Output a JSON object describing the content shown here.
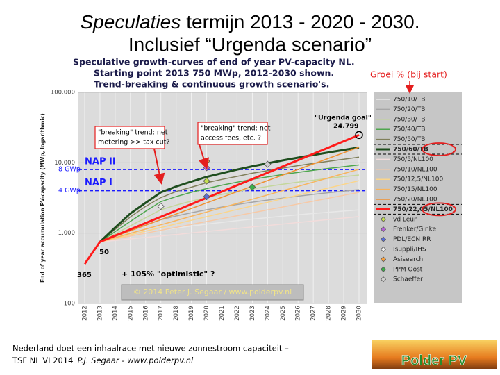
{
  "slide": {
    "title_italic": "Speculaties",
    "title_rest": "termijn 2013 - 2020 - 2030.",
    "title_line2": "Inclusief “Urgenda scenario”",
    "footer_line1": "Nederland doet een inhaalrace met nieuwe zonnestroom capaciteit –",
    "footer_event": "TSF NL VI 2014",
    "footer_author": "P.J. Segaar  - www.polderpv.nl",
    "logo": "Polder PV",
    "growth_note": "Groei % (bij start)"
  },
  "chart_data": {
    "type": "line",
    "title": "Speculative growth-curves of end of year PV-capacity NL.",
    "subtitle": [
      "Starting point 2013 750 MWp, 2012-2030 shown.",
      "Trend-breaking & continuous growth scenario's."
    ],
    "y_label": "End of year accumulation PV-capacity (MWp, logarithmic)",
    "log_scale": true,
    "grid": true,
    "x": [
      2012,
      2013,
      2014,
      2015,
      2016,
      2017,
      2018,
      2019,
      2020,
      2021,
      2022,
      2023,
      2024,
      2025,
      2026,
      2027,
      2028,
      2029,
      2030
    ],
    "xlim": [
      2012,
      2030
    ],
    "xticks": [
      2012,
      2013,
      2014,
      2015,
      2016,
      2017,
      2018,
      2019,
      2020,
      2021,
      2022,
      2023,
      2024,
      2025,
      2026,
      2027,
      2028,
      2029,
      2030
    ],
    "ylim": [
      100,
      100000
    ],
    "yticks": [
      100,
      {
        "value": 1000,
        "label": "1.000"
      },
      {
        "value": 10000,
        "label": "10.000"
      },
      {
        "value": 100000,
        "label": "100.000"
      }
    ],
    "series": [
      {
        "name": "750/10/TB",
        "color": "#e8e8e8",
        "width": 1.5,
        "values": [
          null,
          750,
          825,
          908,
          998,
          1098,
          1180,
          1260,
          1340,
          1420,
          1500,
          1580,
          1660,
          1740,
          1820,
          1900,
          1980,
          2060,
          2140
        ]
      },
      {
        "name": "750/20/TB",
        "color": "#a6a6a6",
        "width": 1.5,
        "values": [
          null,
          750,
          900,
          1080,
          1300,
          1550,
          1750,
          1950,
          2150,
          2350,
          2550,
          2750,
          2950,
          3150,
          3350,
          3550,
          3750,
          3950,
          4150
        ]
      },
      {
        "name": "750/30/TB",
        "color": "#c4d79b",
        "width": 1.5,
        "values": [
          null,
          750,
          975,
          1270,
          1650,
          2150,
          2500,
          2850,
          3200,
          3550,
          3900,
          4250,
          4600,
          4950,
          5300,
          5650,
          6000,
          6350,
          6700
        ]
      },
      {
        "name": "750/40/TB",
        "color": "#4ea64e",
        "width": 1.5,
        "values": [
          null,
          750,
          1050,
          1470,
          2050,
          2800,
          3300,
          3800,
          4300,
          4800,
          5300,
          5800,
          6300,
          6800,
          7300,
          7800,
          8300,
          8800,
          9300
        ]
      },
      {
        "name": "750/50/TB",
        "color": "#7f7f5a",
        "width": 1.5,
        "values": [
          null,
          750,
          1130,
          1700,
          2400,
          3200,
          3900,
          4500,
          5200,
          5800,
          6400,
          7100,
          7700,
          8400,
          9100,
          9800,
          10500,
          11200,
          12000
        ]
      },
      {
        "name": "750/60/TB",
        "color": "#1e4d1e",
        "width": 3,
        "values": [
          null,
          750,
          1200,
          1900,
          2700,
          3800,
          4600,
          5400,
          6300,
          7100,
          8000,
          8900,
          9800,
          10800,
          11800,
          12900,
          14000,
          15200,
          16500
        ]
      },
      {
        "name": "750/5/NL100",
        "color": "#f2dcdb",
        "width": 1.5,
        "values": [
          null,
          750,
          788,
          827,
          868,
          912,
          957,
          1005,
          1055,
          1108,
          1163,
          1222,
          1283,
          1347,
          1414,
          1485,
          1559,
          1637,
          1719
        ]
      },
      {
        "name": "750/10/NL100",
        "color": "#f7c9a6",
        "width": 1.5,
        "values": [
          null,
          750,
          825,
          908,
          998,
          1098,
          1208,
          1329,
          1461,
          1608,
          1768,
          1945,
          2140,
          2354,
          2589,
          2848,
          3133,
          3446,
          3791
        ]
      },
      {
        "name": "750/12,5/NL100",
        "color": "#fbd58a",
        "width": 1.5,
        "values": [
          null,
          750,
          844,
          949,
          1068,
          1201,
          1352,
          1521,
          1711,
          1925,
          2165,
          2436,
          2740,
          3083,
          3468,
          3902,
          4389,
          4938,
          5555
        ]
      },
      {
        "name": "750/15/NL100",
        "color": "#f8b45c",
        "width": 1.5,
        "values": [
          null,
          750,
          863,
          992,
          1141,
          1312,
          1509,
          1735,
          1995,
          2294,
          2638,
          3034,
          3489,
          4013,
          4614,
          5307,
          6103,
          7018,
          8071
        ]
      },
      {
        "name": "750/20/NL100",
        "color": "#f09030",
        "width": 1.5,
        "values": [
          null,
          750,
          900,
          1080,
          1296,
          1555,
          1866,
          2239,
          2687,
          3225,
          3870,
          4644,
          5572,
          6687,
          8024,
          9629,
          11555,
          13866,
          16639
        ]
      },
      {
        "name": "750/22,05/NL100",
        "color": "#ff1a1a",
        "width": 3,
        "values": [
          365,
          750,
          921,
          1132,
          1390,
          1708,
          2098,
          2578,
          3167,
          3891,
          4780,
          5872,
          7214,
          8862,
          10887,
          13375,
          16431,
          20186,
          24799
        ]
      }
    ],
    "points": [
      {
        "name": "vd Leun",
        "color": "#c4e04f",
        "x": 2020,
        "value": 5500
      },
      {
        "name": "Frenker/Ginke",
        "color": "#b264d4",
        "x": 2020,
        "value": 8500
      },
      {
        "name": "PDL/ECN RR",
        "color": "#5a6fd6",
        "x": 2020,
        "value": 3300
      },
      {
        "name": "Isuppli/IHS",
        "color": "#f0f0f0",
        "x": 2017,
        "value": 2400
      },
      {
        "name": "Asisearch",
        "color": "#f6a040",
        "x": 2020,
        "value": 10500
      },
      {
        "name": "PPM Oost",
        "color": "#3cb04a",
        "x": 2023,
        "value": 4500
      },
      {
        "name": "Schaeffer",
        "color": "#d0d0d0",
        "x": 2024,
        "value": 9500
      }
    ],
    "reference_lines": [
      {
        "label": "NAP II",
        "value_label": "8 GWp",
        "value": 8000,
        "color": "#1a1aff"
      },
      {
        "label": "NAP I",
        "value_label": "4 GWp",
        "value": 4000,
        "color": "#1a1aff"
      }
    ],
    "annotations": {
      "urgenda": "\"Urgenda goal\"",
      "urgenda_value": "24.799",
      "break1": [
        "\"breaking\" trend: net",
        "metering >> tax cut?"
      ],
      "break2": [
        "\"breaking\" trend: net",
        "access fees, etc. ?"
      ],
      "start2013": "50",
      "start2012": "365",
      "optimistic": "+ 105% \"optimistic\" ?",
      "copyright": "© 2014 Peter J. Segaar / www.polderpv.nl"
    }
  }
}
